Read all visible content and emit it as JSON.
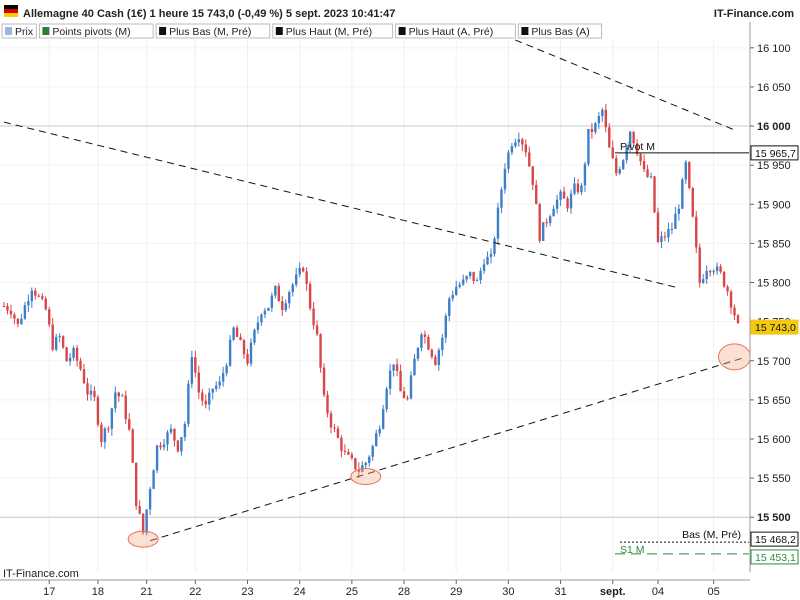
{
  "header": {
    "title": "Allemagne 40 Cash (1€) 1 heure 15 743,0 (-0,49 %) 5 sept. 2023 10:41:47",
    "brand": "IT-Finance.com"
  },
  "legend": [
    {
      "label": "Prix",
      "color": "#9bb6e0"
    },
    {
      "label": "Points pivots (M)",
      "color": "#2e7d32"
    },
    {
      "label": "Plus Bas (M, Pré)",
      "color": "#111111"
    },
    {
      "label": "Plus Haut (M, Pré)",
      "color": "#111111"
    },
    {
      "label": "Plus Haut (A, Pré)",
      "color": "#111111"
    },
    {
      "label": "Plus Bas (A)",
      "color": "#111111"
    }
  ],
  "watermark": "IT-Finance.com",
  "colors": {
    "up": "#3d7ec9",
    "down": "#d9464a",
    "pivot": "#111111",
    "support": "#2e8b3e",
    "price_tag": "#f2c811",
    "highlight": "#f4a582"
  },
  "chart_data": {
    "type": "candlestick",
    "ylim": [
      15430,
      16110
    ],
    "y_ticks": [
      "16 100",
      "16 050",
      "16 000",
      "15 950",
      "15 900",
      "15 850",
      "15 800",
      "15 750",
      "15 700",
      "15 650",
      "15 600",
      "15 550",
      "15 500"
    ],
    "y_tick_values": [
      16100,
      16050,
      16000,
      15950,
      15900,
      15850,
      15800,
      15750,
      15700,
      15650,
      15600,
      15550,
      15500
    ],
    "x_ticks": [
      "17",
      "18",
      "21",
      "22",
      "23",
      "24",
      "25",
      "28",
      "29",
      "30",
      "31",
      "sept.",
      "04",
      "05"
    ],
    "x_tick_positions_index": [
      13,
      27,
      41,
      55,
      70,
      85,
      100,
      115,
      130,
      145,
      160,
      175,
      188,
      204
    ],
    "close_path": [
      [
        0,
        15770
      ],
      [
        2,
        15765
      ],
      [
        4,
        15745
      ],
      [
        6,
        15770
      ],
      [
        8,
        15795
      ],
      [
        10,
        15780
      ],
      [
        12,
        15765
      ],
      [
        14,
        15720
      ],
      [
        16,
        15730
      ],
      [
        18,
        15700
      ],
      [
        20,
        15710
      ],
      [
        22,
        15690
      ],
      [
        24,
        15660
      ],
      [
        26,
        15650
      ],
      [
        28,
        15600
      ],
      [
        30,
        15620
      ],
      [
        32,
        15660
      ],
      [
        34,
        15650
      ],
      [
        36,
        15610
      ],
      [
        38,
        15520
      ],
      [
        40,
        15480
      ],
      [
        42,
        15540
      ],
      [
        44,
        15590
      ],
      [
        46,
        15600
      ],
      [
        48,
        15610
      ],
      [
        50,
        15590
      ],
      [
        52,
        15620
      ],
      [
        54,
        15710
      ],
      [
        56,
        15660
      ],
      [
        58,
        15640
      ],
      [
        60,
        15665
      ],
      [
        62,
        15670
      ],
      [
        64,
        15700
      ],
      [
        66,
        15740
      ],
      [
        68,
        15720
      ],
      [
        70,
        15700
      ],
      [
        72,
        15735
      ],
      [
        74,
        15765
      ],
      [
        76,
        15770
      ],
      [
        78,
        15790
      ],
      [
        80,
        15770
      ],
      [
        82,
        15790
      ],
      [
        84,
        15805
      ],
      [
        86,
        15820
      ],
      [
        88,
        15770
      ],
      [
        90,
        15730
      ],
      [
        92,
        15650
      ],
      [
        94,
        15620
      ],
      [
        96,
        15600
      ],
      [
        98,
        15580
      ],
      [
        100,
        15570
      ],
      [
        102,
        15560
      ],
      [
        104,
        15570
      ],
      [
        106,
        15590
      ],
      [
        108,
        15620
      ],
      [
        110,
        15670
      ],
      [
        112,
        15700
      ],
      [
        114,
        15660
      ],
      [
        116,
        15650
      ],
      [
        118,
        15700
      ],
      [
        120,
        15740
      ],
      [
        122,
        15720
      ],
      [
        124,
        15700
      ],
      [
        126,
        15730
      ],
      [
        128,
        15780
      ],
      [
        130,
        15795
      ],
      [
        132,
        15800
      ],
      [
        134,
        15810
      ],
      [
        136,
        15800
      ],
      [
        138,
        15830
      ],
      [
        140,
        15830
      ],
      [
        142,
        15890
      ],
      [
        144,
        15950
      ],
      [
        146,
        15980
      ],
      [
        148,
        15990
      ],
      [
        150,
        15970
      ],
      [
        152,
        15930
      ],
      [
        154,
        15860
      ],
      [
        156,
        15880
      ],
      [
        158,
        15900
      ],
      [
        160,
        15910
      ],
      [
        162,
        15900
      ],
      [
        164,
        15920
      ],
      [
        166,
        15920
      ],
      [
        168,
        15990
      ],
      [
        170,
        16000
      ],
      [
        172,
        16020
      ],
      [
        174,
        15970
      ],
      [
        176,
        15940
      ],
      [
        178,
        15960
      ],
      [
        180,
        15995
      ],
      [
        182,
        15970
      ],
      [
        184,
        15940
      ],
      [
        186,
        15930
      ],
      [
        188,
        15850
      ],
      [
        190,
        15860
      ],
      [
        192,
        15870
      ],
      [
        194,
        15900
      ],
      [
        196,
        15950
      ],
      [
        198,
        15880
      ],
      [
        200,
        15800
      ],
      [
        202,
        15820
      ],
      [
        204,
        15820
      ],
      [
        206,
        15810
      ],
      [
        208,
        15790
      ],
      [
        210,
        15760
      ],
      [
        211,
        15743
      ]
    ],
    "trendlines": [
      {
        "style": "dashed",
        "from": [
          0,
          16005
        ],
        "to": [
          194,
          15793
        ]
      },
      {
        "style": "dashed",
        "from": [
          147,
          16110
        ],
        "to": [
          210,
          15995
        ]
      },
      {
        "style": "dashed",
        "from": [
          42,
          15470
        ],
        "to": [
          212,
          15703
        ]
      }
    ],
    "levels": [
      {
        "label": "Pivot M",
        "value": 15965.7,
        "value_label": "15 965,7",
        "style": "solid",
        "color": "#111111"
      },
      {
        "label": "Bas (M, Pré)",
        "value": 15468.2,
        "value_label": "15 468,2",
        "style": "dotted",
        "color": "#111111"
      },
      {
        "label": "S1 M",
        "value": 15453.1,
        "value_label": "15 453,1",
        "style": "dashed",
        "color": "#2e8b3e"
      }
    ],
    "horizontal_refs": [
      16000,
      15500
    ],
    "last_price": {
      "value": 15743.0,
      "value_label": "15 743,0"
    },
    "highlight_circles": [
      {
        "index": 40,
        "value": 15472
      },
      {
        "index": 104,
        "value": 15552
      },
      {
        "index": 210,
        "value": 15705
      }
    ]
  }
}
